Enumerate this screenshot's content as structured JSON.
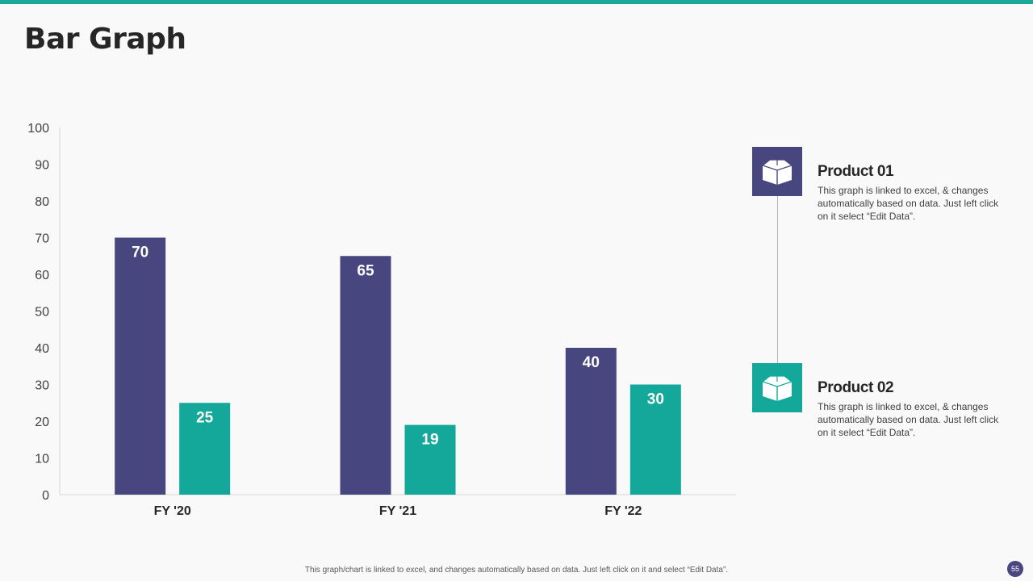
{
  "slide": {
    "title": "Bar Graph",
    "footer_note": "This graph/chart is linked to excel, and changes automatically based on data. Just left click on it and select “Edit Data”.",
    "page_number": "55"
  },
  "colors": {
    "accent_teal": "#1aa79a",
    "series_1": "#48467e",
    "series_2": "#14a89b",
    "page_badge": "#4a4780"
  },
  "legend": {
    "items": [
      {
        "icon": "box-icon",
        "label": "Product 01",
        "description": "This graph is linked to excel, & changes automatically based on data. Just left click on it select “Edit Data”."
      },
      {
        "icon": "box-icon",
        "label": "Product 02",
        "description": "This graph is linked to excel, & changes automatically based on data. Just left click on it select “Edit Data”."
      }
    ]
  },
  "chart_data": {
    "type": "bar",
    "title": "",
    "xlabel": "",
    "ylabel": "",
    "categories": [
      "FY '20",
      "FY '21",
      "FY '22"
    ],
    "series": [
      {
        "name": "Product 01",
        "values": [
          70,
          65,
          40
        ]
      },
      {
        "name": "Product 02",
        "values": [
          25,
          19,
          30
        ]
      }
    ],
    "ylim": [
      0,
      100
    ],
    "yticks": [
      0,
      10,
      20,
      30,
      40,
      50,
      60,
      70,
      80,
      90,
      100
    ],
    "data_labels": true,
    "grid": false,
    "legend_position": "right"
  }
}
